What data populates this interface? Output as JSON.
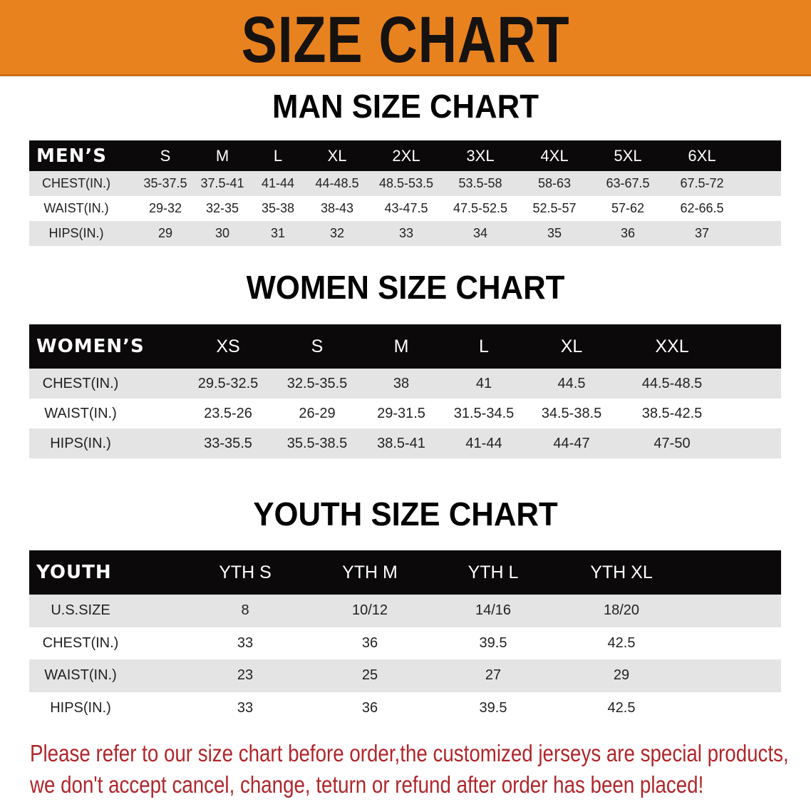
{
  "banner": {
    "title": "SIZE CHART",
    "color": "#e8821f"
  },
  "men": {
    "title": "MAN SIZE CHART",
    "header_label": "MEN’S",
    "sizes": [
      "S",
      "M",
      "L",
      "XL",
      "2XL",
      "3XL",
      "4XL",
      "5XL",
      "6XL"
    ],
    "rows": [
      {
        "label": "CHEST(IN.)",
        "values": [
          "35-37.5",
          "37.5-41",
          "41-44",
          "44-48.5",
          "48.5-53.5",
          "53.5-58",
          "58-63",
          "63-67.5",
          "67.5-72"
        ]
      },
      {
        "label": "WAIST(IN.)",
        "values": [
          "29-32",
          "32-35",
          "35-38",
          "38-43",
          "43-47.5",
          "47.5-52.5",
          "52.5-57",
          "57-62",
          "62-66.5"
        ]
      },
      {
        "label": "HIPS(IN.)",
        "values": [
          "29",
          "30",
          "31",
          "32",
          "33",
          "34",
          "35",
          "36",
          "37"
        ]
      }
    ]
  },
  "women": {
    "title": "WOMEN SIZE CHART",
    "header_label": "WOMEN’S",
    "sizes": [
      "XS",
      "S",
      "M",
      "L",
      "XL",
      "XXL"
    ],
    "rows": [
      {
        "label": "CHEST(IN.)",
        "values": [
          "29.5-32.5",
          "32.5-35.5",
          "38",
          "41",
          "44.5",
          "44.5-48.5"
        ]
      },
      {
        "label": "WAIST(IN.)",
        "values": [
          "23.5-26",
          "26-29",
          "29-31.5",
          "31.5-34.5",
          "34.5-38.5",
          "38.5-42.5"
        ]
      },
      {
        "label": "HIPS(IN.)",
        "values": [
          "33-35.5",
          "35.5-38.5",
          "38.5-41",
          "41-44",
          "44-47",
          "47-50"
        ]
      }
    ]
  },
  "youth": {
    "title": "YOUTH SIZE CHART",
    "header_label": "YOUTH",
    "sizes": [
      "YTH S",
      "YTH M",
      "YTH L",
      "YTH XL"
    ],
    "rows": [
      {
        "label": "U.S.SIZE",
        "values": [
          "8",
          "10/12",
          "14/16",
          "18/20"
        ]
      },
      {
        "label": "CHEST(IN.)",
        "values": [
          "33",
          "36",
          "39.5",
          "42.5"
        ]
      },
      {
        "label": "WAIST(IN.)",
        "values": [
          "23",
          "25",
          "27",
          "29"
        ]
      },
      {
        "label": "HIPS(IN.)",
        "values": [
          "33",
          "36",
          "39.5",
          "42.5"
        ]
      }
    ]
  },
  "notice": {
    "line1": "Please refer to our size chart before order,the customized jerseys are special products,",
    "line2": "we don't accept cancel, change, teturn or refund after order has been placed!",
    "color": "#b0262b"
  }
}
